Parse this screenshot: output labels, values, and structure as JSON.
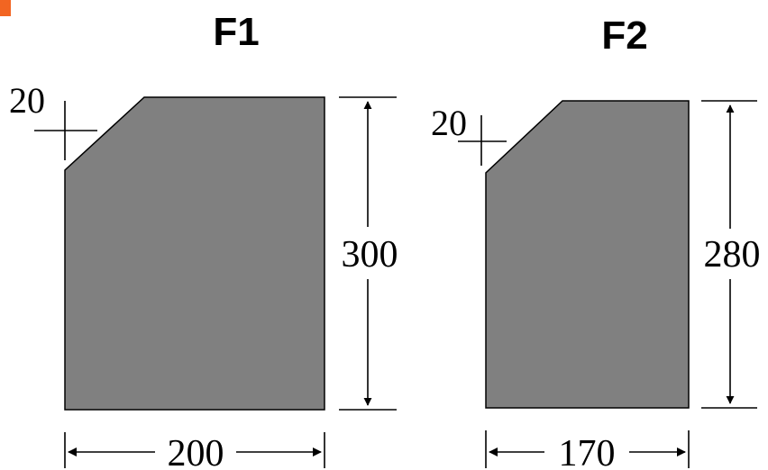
{
  "colors": {
    "fill": "#808080",
    "stroke": "#000000",
    "accent": "#F26522"
  },
  "sections": [
    {
      "title": "F1",
      "chamfer_label": "20",
      "height_label": "300",
      "width_label": "200"
    },
    {
      "title": "F2",
      "chamfer_label": "20",
      "height_label": "280",
      "width_label": "170"
    }
  ]
}
